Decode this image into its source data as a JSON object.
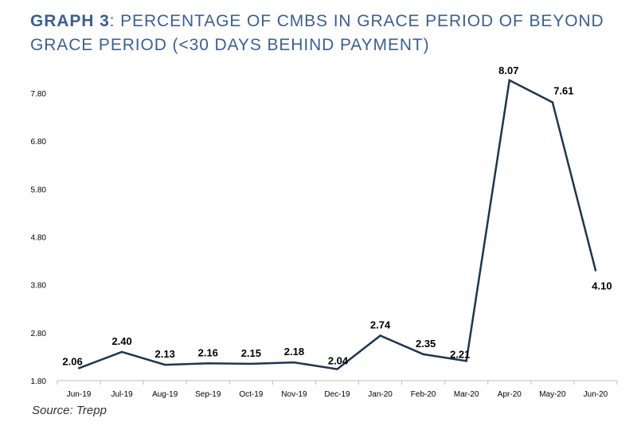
{
  "title": {
    "bold_part": "GRAPH 3",
    "rest": ": PERCENTAGE OF CMBS IN GRACE PERIOD OF BEYOND GRACE PERIOD (<30 DAYS BEHIND PAYMENT)"
  },
  "source": "Source: Trepp",
  "colors": {
    "title": "#3a5f95",
    "line": "#1f3550",
    "axis": "#bfbfbf",
    "text": "#000000"
  },
  "chart_data": {
    "type": "line",
    "title": "GRAPH 3: PERCENTAGE OF CMBS IN GRACE PERIOD OF BEYOND GRACE PERIOD (<30 DAYS BEHIND PAYMENT)",
    "categories": [
      "Jun-19",
      "Jul-19",
      "Aug-19",
      "Sep-19",
      "Oct-19",
      "Nov-19",
      "Dec-19",
      "Jan-20",
      "Feb-20",
      "Mar-20",
      "Apr-20",
      "May-20",
      "Jun-20"
    ],
    "values": [
      2.06,
      2.4,
      2.13,
      2.16,
      2.15,
      2.18,
      2.04,
      2.74,
      2.35,
      2.21,
      8.07,
      7.61,
      4.1
    ],
    "data_labels": [
      "2.06",
      "2.40",
      "2.13",
      "2.16",
      "2.15",
      "2.18",
      "2.04",
      "2.74",
      "2.35",
      "2.21",
      "8.07",
      "7.61",
      "4.10"
    ],
    "yticks": [
      1.8,
      2.8,
      3.8,
      4.8,
      5.8,
      6.8,
      7.8
    ],
    "ytick_labels": [
      "1.80",
      "2.80",
      "3.80",
      "4.80",
      "5.80",
      "6.80",
      "7.80"
    ],
    "ylim": [
      1.8,
      8.3
    ],
    "xlabel": "",
    "ylabel": "",
    "grid": false,
    "legend": "none"
  }
}
